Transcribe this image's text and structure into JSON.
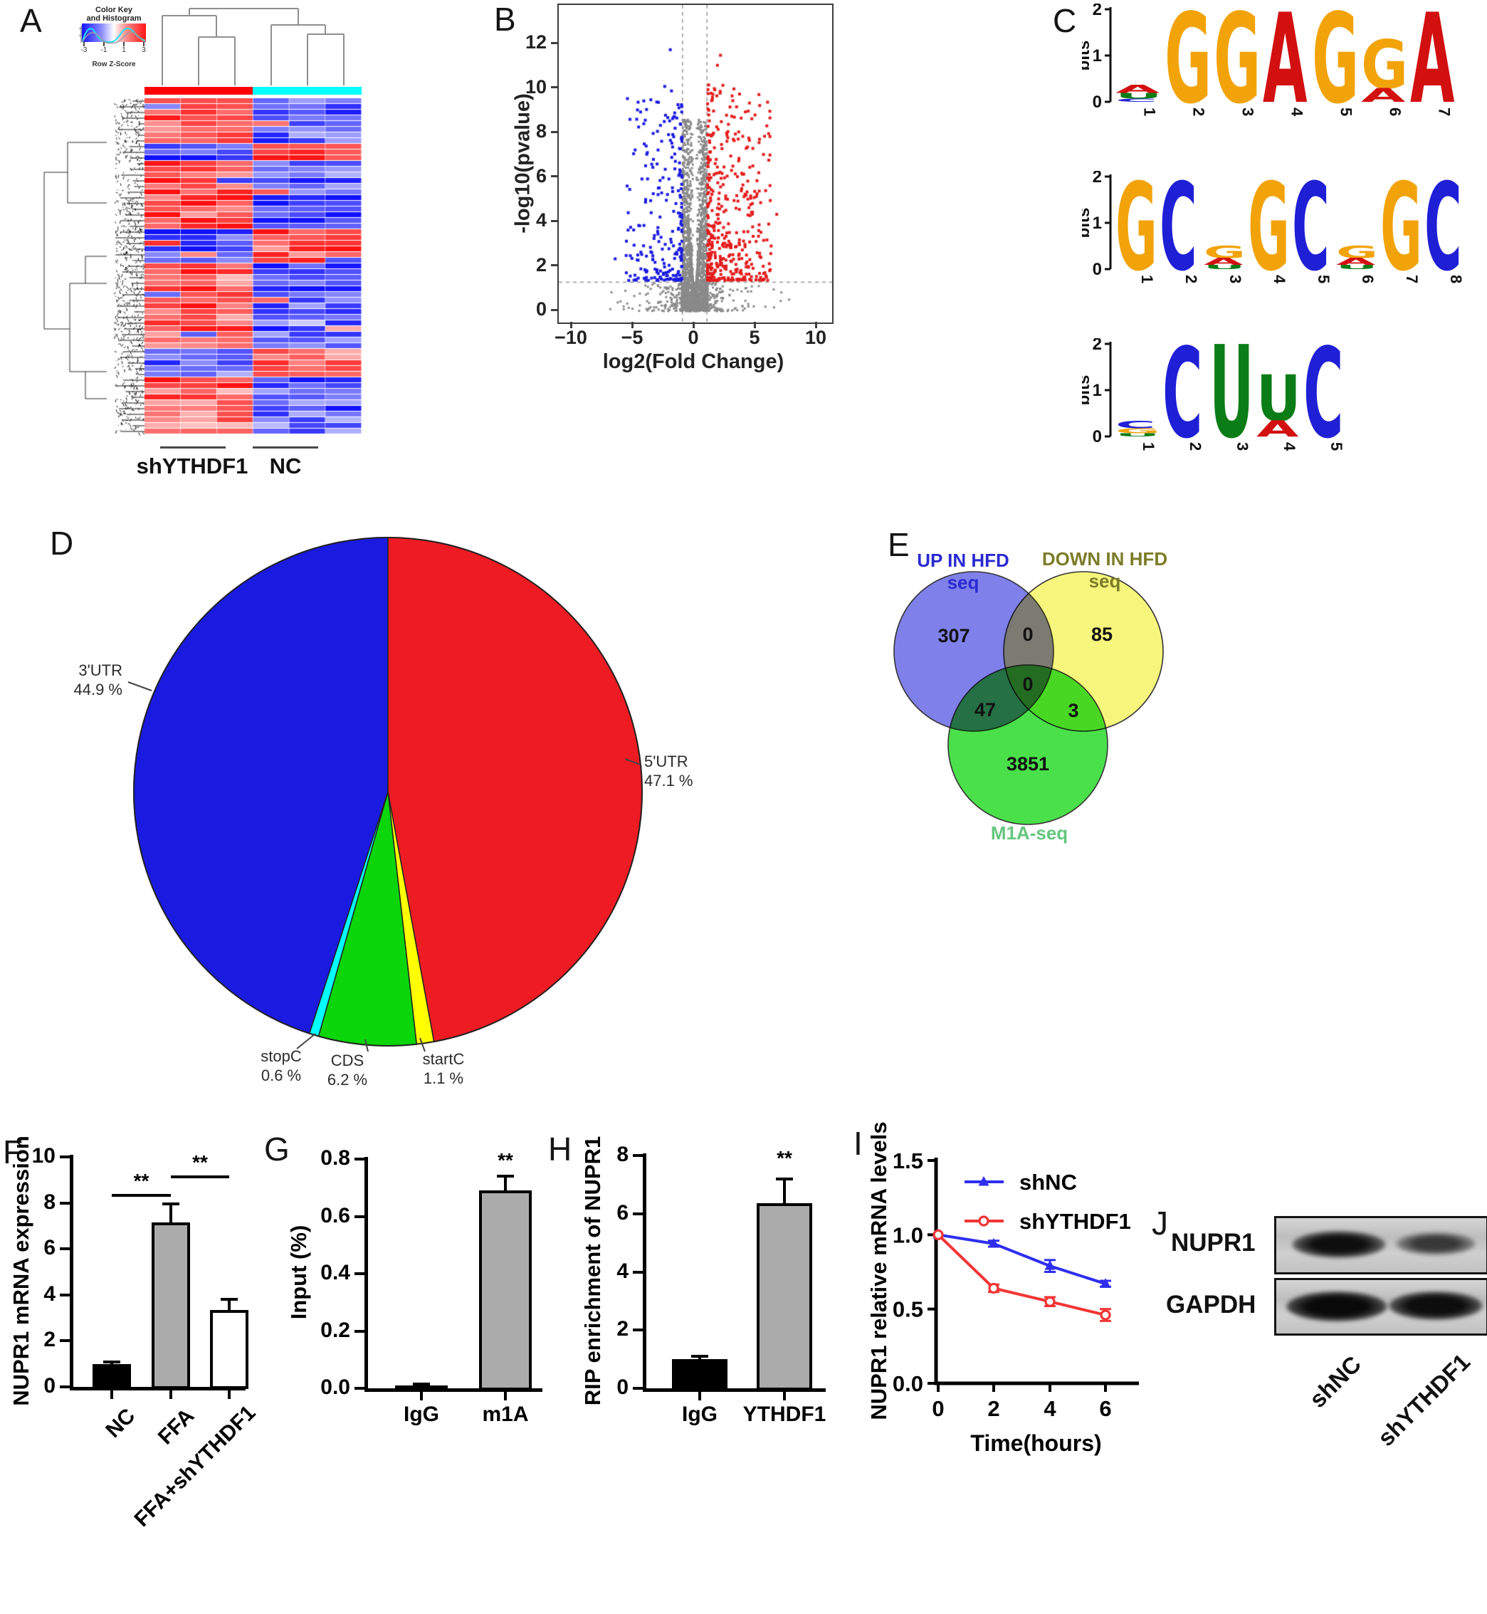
{
  "panels": {
    "a": {
      "letter": "A",
      "color_key": {
        "title1": "Color Key",
        "title2": "and Histogram",
        "axis_label": "Row Z-Score"
      },
      "groups": [
        {
          "label": "shYTHDF1",
          "color": "#ff0000"
        },
        {
          "label": "NC",
          "color": "#00ffff"
        }
      ]
    },
    "b": {
      "letter": "B"
    },
    "c": {
      "letter": "C"
    },
    "d": {
      "letter": "D"
    },
    "e": {
      "letter": "E"
    },
    "f": {
      "letter": "F"
    },
    "g": {
      "letter": "G"
    },
    "h": {
      "letter": "H"
    },
    "i": {
      "letter": "I"
    },
    "j": {
      "letter": "J",
      "rows": [
        "NUPR1",
        "GAPDH"
      ],
      "lanes": [
        "shNC",
        "shYTHDF1"
      ]
    }
  },
  "chart_data": [
    {
      "panel": "A",
      "type": "heatmap",
      "columns": [
        "shYTHDF1",
        "shYTHDF1",
        "shYTHDF1",
        "NC",
        "NC",
        "NC"
      ],
      "column_bar_colors": [
        "#ff0000",
        "#00ffff"
      ],
      "rows": 59,
      "inverted_row_ranges": [
        [
          8,
          11
        ],
        [
          23,
          29
        ],
        [
          44,
          49
        ]
      ],
      "colorbar": {
        "ticks": [
          "-3",
          "-1",
          "1",
          "3"
        ],
        "min": -3,
        "max": 3,
        "label": "Row Z-Score",
        "gradient": [
          "#1414ff",
          "#ffffff",
          "#ff1414"
        ]
      }
    },
    {
      "panel": "B",
      "type": "scatter",
      "subtype": "volcano",
      "xlabel": "log2(Fold Change)",
      "ylabel": "-log10(pvalue)",
      "xticks": [
        "-10",
        "-5",
        "0",
        "5",
        "10"
      ],
      "yticks": [
        "0",
        "2",
        "4",
        "6",
        "8",
        "10",
        "12"
      ],
      "xlim": [
        -11.8,
        11.8
      ],
      "ylim": [
        -0.35,
        13.6
      ],
      "threshold_vlines": [
        -1,
        1
      ],
      "threshold_hline": 1.3,
      "colors": {
        "up": "#e41c1c",
        "down": "#1a1ae0",
        "ns": "#8a8a8a"
      },
      "point_counts": {
        "up": 430,
        "down": 235,
        "ns": 3300
      },
      "notable_points": {
        "up": [
          [
            2.1,
            11.5
          ],
          [
            1.85,
            11.05
          ],
          [
            2.3,
            10.15
          ],
          [
            1.6,
            10.0
          ],
          [
            6.7,
            4.35
          ],
          [
            5.9,
            3.2
          ],
          [
            5.3,
            2.6
          ],
          [
            4.1,
            3.0
          ]
        ],
        "down": [
          [
            -2.0,
            11.75
          ],
          [
            -2.45,
            10.1
          ],
          [
            -1.9,
            9.9
          ],
          [
            -3.1,
            9.4
          ],
          [
            -2.2,
            8.7
          ],
          [
            -6.5,
            2.35
          ],
          [
            -5.6,
            2.5
          ],
          [
            -4.4,
            1.9
          ]
        ]
      }
    },
    {
      "panel": "C",
      "type": "sequence-logo",
      "ylabel": "bits",
      "yticks": [
        "0",
        "1",
        "2"
      ],
      "letter_colors": {
        "A": "#d21010",
        "G": "#f2a30a",
        "C": "#1f1fd6",
        "U": "#0b7d16"
      },
      "logos": [
        {
          "positions": [
            "1",
            "2",
            "3",
            "4",
            "5",
            "6",
            "7"
          ],
          "stacks": [
            [
              [
                "A",
                0.18
              ],
              [
                "U",
                0.12
              ],
              [
                "C",
                0.07
              ]
            ],
            [
              [
                "G",
                1.95
              ]
            ],
            [
              [
                "G",
                1.95
              ]
            ],
            [
              [
                "A",
                1.95
              ]
            ],
            [
              [
                "G",
                1.95
              ]
            ],
            [
              [
                "G",
                1.05
              ],
              [
                "A",
                0.3
              ]
            ],
            [
              [
                "A",
                1.95
              ]
            ]
          ]
        },
        {
          "positions": [
            "1",
            "2",
            "3",
            "4",
            "5",
            "6",
            "7",
            "8"
          ],
          "stacks": [
            [
              [
                "G",
                1.9
              ]
            ],
            [
              [
                "C",
                1.9
              ]
            ],
            [
              [
                "G",
                0.27
              ],
              [
                "A",
                0.15
              ],
              [
                "U",
                0.09
              ]
            ],
            [
              [
                "G",
                1.9
              ]
            ],
            [
              [
                "C",
                1.9
              ]
            ],
            [
              [
                "G",
                0.27
              ],
              [
                "A",
                0.15
              ],
              [
                "U",
                0.09
              ]
            ],
            [
              [
                "G",
                1.9
              ]
            ],
            [
              [
                "C",
                1.9
              ]
            ]
          ]
        },
        {
          "positions": [
            "1",
            "2",
            "3",
            "4",
            "5"
          ],
          "stacks": [
            [
              [
                "C",
                0.16
              ],
              [
                "G",
                0.11
              ],
              [
                "U",
                0.07
              ]
            ],
            [
              [
                "C",
                1.95
              ]
            ],
            [
              [
                "U",
                2.0
              ]
            ],
            [
              [
                "U",
                1.0
              ],
              [
                "A",
                0.35
              ]
            ],
            [
              [
                "C",
                1.95
              ]
            ]
          ]
        }
      ]
    },
    {
      "panel": "D",
      "type": "pie",
      "unit": "%",
      "direction": "clockwise",
      "start_angle_deg": 0,
      "slices": [
        {
          "label": "5'UTR",
          "value": 47.1,
          "color": "#ee1b22"
        },
        {
          "label": "startC",
          "value": 1.1,
          "color": "#ffff00"
        },
        {
          "label": "CDS",
          "value": 6.2,
          "color": "#0ad60a"
        },
        {
          "label": "stopC",
          "value": 0.6,
          "color": "#00ffff"
        },
        {
          "label": "3'UTR",
          "value": 44.9,
          "color": "#1a1ae0"
        }
      ]
    },
    {
      "panel": "E",
      "type": "venn",
      "sets": [
        {
          "name": "UP IN HFD seq",
          "fill": "#8080ea",
          "label_color": "#2a2ad2"
        },
        {
          "name": "DOWN IN HFD seq",
          "fill": "#f6f67c",
          "label_color": "#7c7c28"
        },
        {
          "name": "M1A-seq",
          "fill": "#4ae04a",
          "label_color": "#63c77e"
        }
      ],
      "counts": {
        "up_only": "307",
        "up_down": "0",
        "down_only": "85",
        "all": "0",
        "up_m1a": "47",
        "down_m1a": "3",
        "m1a_only": "3851"
      }
    },
    {
      "panel": "F",
      "type": "bar",
      "ylabel": "NUPR1 mRNA expression",
      "categories": [
        "NC",
        "FFA",
        "FFA+shYTHDF1"
      ],
      "values": [
        1.0,
        7.15,
        3.35
      ],
      "errors": [
        0.08,
        0.8,
        0.45
      ],
      "bar_colors": [
        "#000000",
        "#ababab",
        "#ffffff"
      ],
      "yticks": [
        "0",
        "2",
        "4",
        "6",
        "8",
        "10"
      ],
      "ylim": [
        0,
        10
      ],
      "sig_pairs": [
        {
          "from": 0,
          "to": 1,
          "y": 8.4,
          "label": "**"
        },
        {
          "from": 1,
          "to": 2,
          "y": 9.2,
          "label": "**"
        }
      ]
    },
    {
      "panel": "G",
      "type": "bar",
      "ylabel": "Input (%)",
      "categories": [
        "IgG",
        "m1A"
      ],
      "values": [
        0.01,
        0.69
      ],
      "errors": [
        0.004,
        0.05
      ],
      "bar_colors": [
        "#000000",
        "#ababab"
      ],
      "yticks": [
        "0.0",
        "0.2",
        "0.4",
        "0.6",
        "0.8"
      ],
      "ylim": [
        0,
        0.8
      ],
      "sig_points": [
        {
          "index": 1,
          "y": 0.785,
          "label": "**"
        }
      ]
    },
    {
      "panel": "H",
      "type": "bar",
      "ylabel": "RIP enrichment of NUPR1",
      "categories": [
        "IgG",
        "YTHDF1"
      ],
      "values": [
        1.0,
        6.35
      ],
      "errors": [
        0.1,
        0.85
      ],
      "bar_colors": [
        "#000000",
        "#ababab"
      ],
      "yticks": [
        "0",
        "2",
        "4",
        "6",
        "8"
      ],
      "ylim": [
        0,
        8
      ],
      "sig_points": [
        {
          "index": 1,
          "y": 7.8,
          "label": "**"
        }
      ]
    },
    {
      "panel": "I",
      "type": "line",
      "xlabel": "Time(hours)",
      "ylabel": "NUPR1 relative mRNA levels",
      "x": [
        0,
        2,
        4,
        6
      ],
      "xticks": [
        "0",
        "2",
        "4",
        "6"
      ],
      "yticks": [
        "0.0",
        "0.5",
        "1.0",
        "1.5"
      ],
      "ylim": [
        0,
        1.5
      ],
      "series": [
        {
          "name": "shNC",
          "color": "#2e2ef0",
          "marker": "triangle",
          "values": [
            1.0,
            0.94,
            0.79,
            0.67
          ],
          "errors": [
            0.012,
            0.02,
            0.04,
            0.02
          ]
        },
        {
          "name": "shYTHDF1",
          "color": "#f23535",
          "marker": "circle-open",
          "values": [
            1.0,
            0.64,
            0.55,
            0.46
          ],
          "errors": [
            0.012,
            0.025,
            0.03,
            0.04
          ]
        }
      ]
    },
    {
      "panel": "J",
      "type": "western-blot",
      "targets": [
        "NUPR1",
        "GAPDH"
      ],
      "lanes": [
        "shNC",
        "shYTHDF1"
      ],
      "band_intensity": [
        [
          1.0,
          0.6
        ],
        [
          1.0,
          0.95
        ]
      ]
    }
  ]
}
